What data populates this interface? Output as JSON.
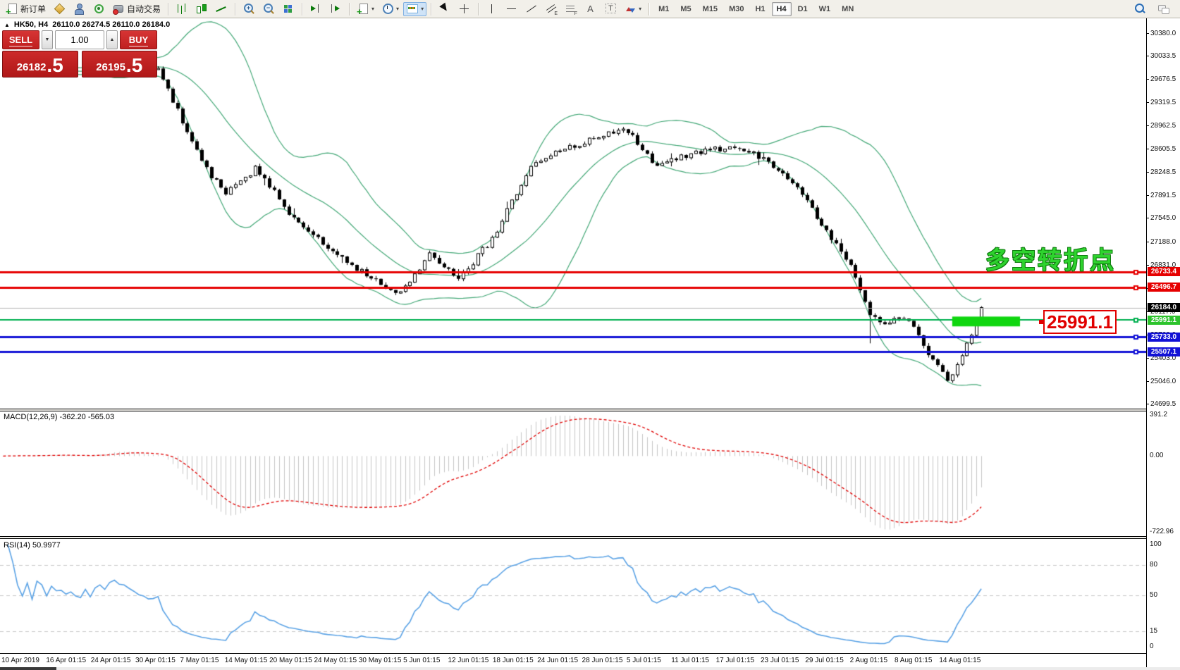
{
  "toolbar": {
    "left_items": [
      {
        "icon": "new-order",
        "label": "新订单"
      },
      {
        "icon": "gold"
      },
      {
        "icon": "user"
      },
      {
        "icon": "signal"
      },
      {
        "icon": "autotrade",
        "label": "自动交易"
      },
      {
        "sep": true
      },
      {
        "icon": "bars"
      },
      {
        "icon": "candles"
      },
      {
        "icon": "line"
      },
      {
        "sep": true
      },
      {
        "icon": "zoom-in"
      },
      {
        "icon": "zoom-out"
      },
      {
        "icon": "tile"
      },
      {
        "sep": true
      },
      {
        "icon": "shift-last"
      },
      {
        "icon": "shift-auto"
      },
      {
        "sep": true
      },
      {
        "icon": "indicators",
        "caret": true
      },
      {
        "icon": "clock",
        "caret": true
      },
      {
        "icon": "template",
        "caret": true,
        "active": true
      },
      {
        "sep": true
      },
      {
        "icon": "cursor"
      },
      {
        "icon": "crosshair"
      },
      {
        "sep": true
      },
      {
        "icon": "vline"
      },
      {
        "icon": "hline"
      },
      {
        "icon": "trendline"
      },
      {
        "icon": "channel"
      },
      {
        "icon": "fibo"
      },
      {
        "icon": "text"
      },
      {
        "icon": "label"
      },
      {
        "icon": "arrows",
        "caret": true
      },
      {
        "sep": true
      }
    ],
    "timeframes": [
      {
        "label": "M1"
      },
      {
        "label": "M5"
      },
      {
        "label": "M15"
      },
      {
        "label": "M30"
      },
      {
        "label": "H1"
      },
      {
        "label": "H4",
        "active": true
      },
      {
        "label": "D1"
      },
      {
        "label": "W1"
      },
      {
        "label": "MN"
      }
    ],
    "right_items": [
      {
        "icon": "search"
      },
      {
        "icon": "chat"
      }
    ],
    "caret_glyph": "▾"
  },
  "window": {
    "collapse_arrow": "▲",
    "title_symbol": "HK50, H4",
    "title_ohlc": "26110.0 26274.5 26110.0 26184.0"
  },
  "trade_panel": {
    "sell_label": "SELL",
    "buy_label": "BUY",
    "volume": "1.00",
    "down_glyph": "▼",
    "up_glyph": "▲",
    "sell_big": "26182",
    "sell_frac": ".5",
    "buy_big": "26195",
    "buy_frac": ".5"
  },
  "annotations": {
    "turning_point": "多空转折点",
    "price_callout": "25991.1"
  },
  "macd_panel": {
    "label": "MACD(12,26,9) -362.20 -565.03",
    "axis": [
      "391.2",
      "0.00",
      "-722.96"
    ]
  },
  "rsi_panel": {
    "label": "RSI(14) 50.9977",
    "axis": [
      "100",
      "80",
      "50",
      "15",
      "0"
    ]
  },
  "price_axis_ticks": [
    "30380.0",
    "30033.5",
    "29676.5",
    "29319.5",
    "28962.5",
    "28605.5",
    "28248.5",
    "27891.5",
    "27545.0",
    "27188.0",
    "26831.0",
    "26474.0",
    "26117.0",
    "25760.0",
    "25403.0",
    "25046.0",
    "24699.5"
  ],
  "date_axis": [
    "10 Apr 2019",
    "16 Apr 01:15",
    "24 Apr 01:15",
    "30 Apr 01:15",
    "7 May 01:15",
    "14 May 01:15",
    "20 May 01:15",
    "24 May 01:15",
    "30 May 01:15",
    "5 Jun 01:15",
    "12 Jun 01:15",
    "18 Jun 01:15",
    "24 Jun 01:15",
    "28 Jun 01:15",
    "5 Jul 01:15",
    "11 Jul 01:15",
    "17 Jul 01:15",
    "23 Jul 01:15",
    "29 Jul 01:15",
    "2 Aug 01:15",
    "8 Aug 01:15",
    "14 Aug 01:15"
  ],
  "chart_data": {
    "type": "candlestick",
    "symbol": "HK50",
    "period": "H4",
    "ylim": [
      24634,
      30618
    ],
    "candle_colors": {
      "up": "#ffffff",
      "down": "#000000",
      "outline": "#000000"
    },
    "candles": {
      "count": 185,
      "lead": 18,
      "seed": 9,
      "noise": 45,
      "spike_down_at": 0.874,
      "spike_down_size": 420,
      "last_close": 26184.0,
      "keyframes": [
        [
          0,
          29810
        ],
        [
          0.03,
          30000
        ],
        [
          0.076,
          29820
        ],
        [
          0.093,
          29350
        ],
        [
          0.127,
          28350
        ],
        [
          0.152,
          27950
        ],
        [
          0.186,
          28320
        ],
        [
          0.228,
          27550
        ],
        [
          0.271,
          27050
        ],
        [
          0.313,
          26650
        ],
        [
          0.347,
          26380
        ],
        [
          0.381,
          27000
        ],
        [
          0.414,
          26620
        ],
        [
          0.452,
          27260
        ],
        [
          0.49,
          28260
        ],
        [
          0.524,
          28610
        ],
        [
          0.566,
          28760
        ],
        [
          0.6,
          28960
        ],
        [
          0.634,
          28360
        ],
        [
          0.667,
          28510
        ],
        [
          0.701,
          28620
        ],
        [
          0.735,
          28610
        ],
        [
          0.769,
          28340
        ],
        [
          0.794,
          28060
        ],
        [
          0.82,
          27460
        ],
        [
          0.853,
          26860
        ],
        [
          0.874,
          26110
        ],
        [
          0.891,
          25930
        ],
        [
          0.912,
          26060
        ],
        [
          0.929,
          25760
        ],
        [
          0.946,
          25360
        ],
        [
          0.963,
          25060
        ],
        [
          0.98,
          25520
        ],
        [
          0.997,
          26000
        ],
        [
          1,
          26184
        ]
      ]
    },
    "bollinger": {
      "period": 20,
      "deviation": 2,
      "color": "#44a877"
    },
    "price_line_tags": [
      {
        "label": "26733.4",
        "price": 26733.4,
        "line_color": "#e60000",
        "line_width": 3,
        "tag_bg": "#e60000",
        "square": true
      },
      {
        "label": "26496.7",
        "price": 26496.7,
        "line_color": "#e60000",
        "line_width": 3,
        "tag_bg": "#e60000",
        "square": true
      },
      {
        "label": "26184.0",
        "price": 26184.0,
        "line_color": "#b4b4b4",
        "line_width": 1,
        "tag_bg": "#000000",
        "square": false
      },
      {
        "label": "25991.1",
        "price": 25991.1,
        "line_color": "#00b050",
        "line_width": 2,
        "tag_bg": "#2cc32c",
        "square": true
      },
      {
        "label": "25733.0",
        "price": 25733.0,
        "line_color": "#1212d6",
        "line_width": 3,
        "tag_bg": "#1212d6",
        "square": true
      },
      {
        "label": "25507.1",
        "price": 25507.1,
        "line_color": "#1212d6",
        "line_width": 3,
        "tag_bg": "#1212d6",
        "square": true
      }
    ],
    "highlight_rect": {
      "from_candle": 178,
      "to_candle": 192,
      "price_top": 26045,
      "price_bottom": 25895,
      "color": "#0fd60f"
    },
    "macd": {
      "fast": 12,
      "slow": 26,
      "signal": 9,
      "ylim": [
        -763,
        425
      ],
      "hist_color": "#c6c6c6",
      "signal_color": "#e00000",
      "last_macd": -362.2,
      "last_signal": -565.03
    },
    "rsi": {
      "period": 14,
      "value": 50.9977,
      "color": "#5aa2e5",
      "levels": [
        80,
        50,
        15
      ],
      "level_color": "#c8c8c8",
      "ylim": [
        -6.2,
        105.5
      ]
    }
  }
}
